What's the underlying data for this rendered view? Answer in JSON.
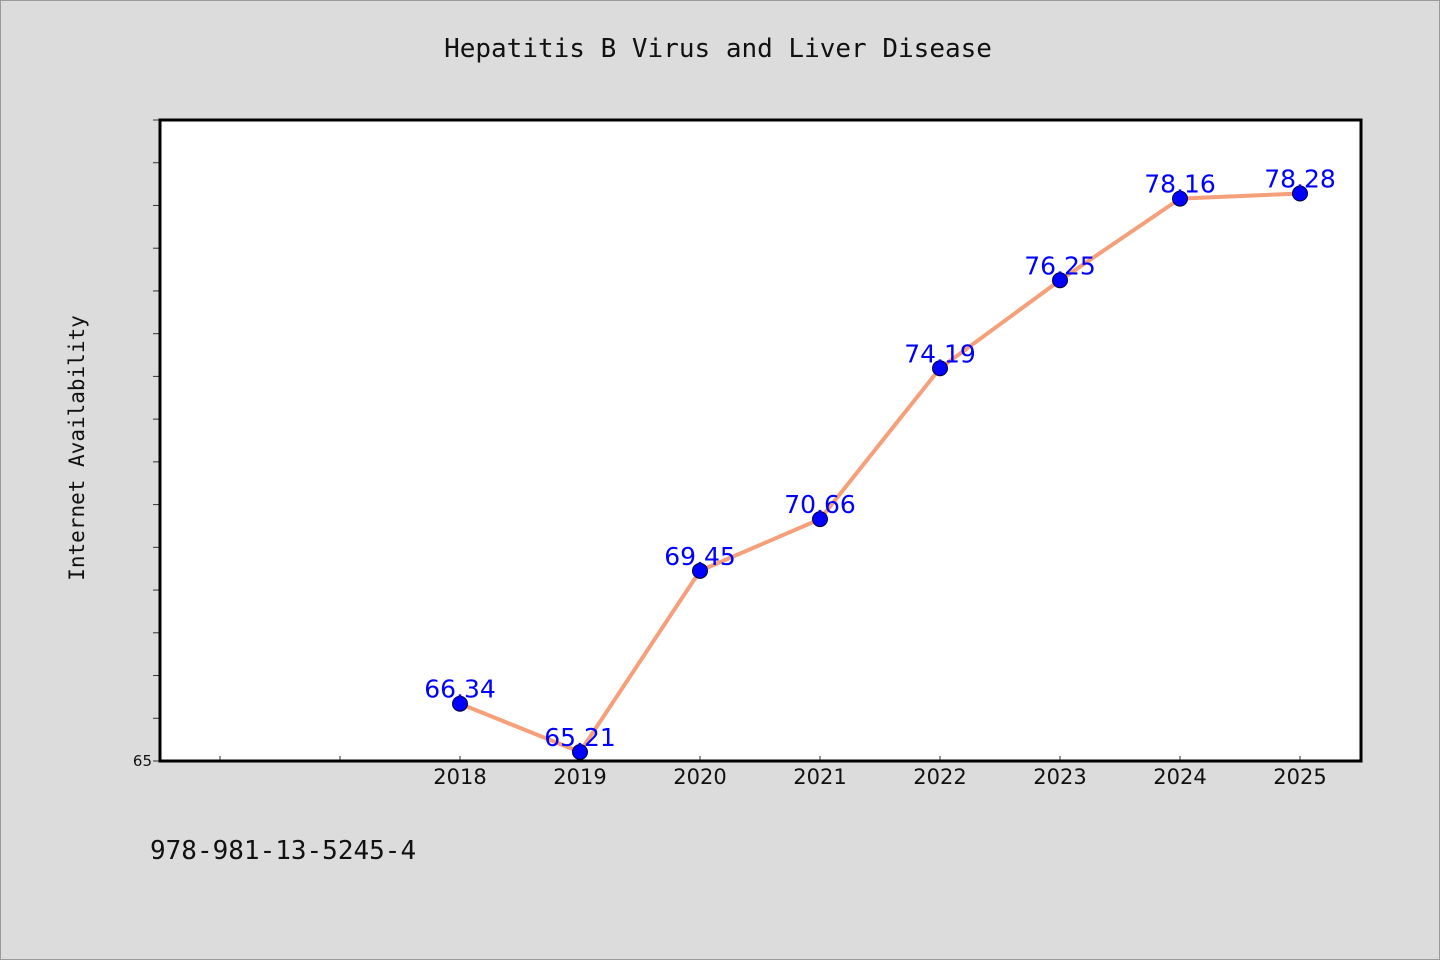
{
  "chart_data": {
    "type": "line",
    "title": "Hepatitis B Virus and Liver Disease",
    "xlabel": "",
    "ylabel": "Internet Availability",
    "categories": [
      "2018",
      "2019",
      "2020",
      "2021",
      "2022",
      "2023",
      "2024",
      "2025"
    ],
    "series": [
      {
        "values": [
          66.34,
          65.21,
          69.45,
          70.66,
          74.19,
          76.25,
          78.16,
          78.28
        ],
        "data_labels": [
          "66.34",
          "65.21",
          "69.45",
          "70.66",
          "74.19",
          "76.25",
          "78.16",
          "78.28"
        ],
        "line_color": "#f5a07a",
        "marker_color": "#0000ff"
      }
    ],
    "y_tick_labels": [
      "65"
    ],
    "ylim": [
      65,
      80
    ],
    "grid": false,
    "legend": "none",
    "colors": {
      "background": "#dcdcdc",
      "plot_background": "#ffffff",
      "line": "#f5a07a",
      "marker": "#0000ff",
      "data_label": "#0000ff"
    }
  },
  "footnote": "978-981-13-5245-4"
}
